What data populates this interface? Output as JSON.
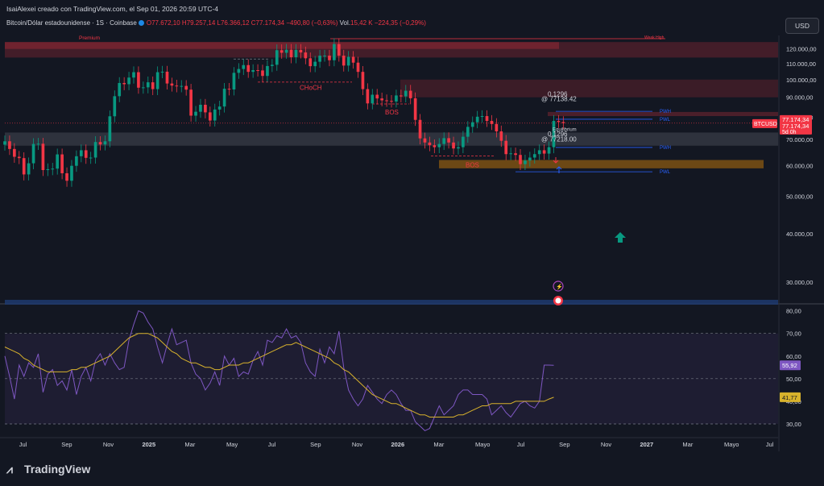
{
  "header": {
    "title": "IsaiAlexei creado con TradingView.com, el Sep 01, 2026 20:59 UTC-4",
    "symbol": "Bitcoin/Dólar estadounidense · 1S · Coinbase",
    "ohlc": "O77.672,10  H79.257,14  L76.366,12  C77.174,34",
    "change": "−490,80 (−0,63%)",
    "volume_label": "Vol.",
    "volume_value": "15,42 K",
    "volume_change": "−224,35 (−0,29%)",
    "currency_button": "USD"
  },
  "footer": {
    "brand": "TradingView"
  },
  "colors": {
    "up": "#089981",
    "down": "#f23645",
    "rsi": "#7e57c2",
    "rsi_ma": "#d8b22c",
    "background": "#131722"
  },
  "chart_data": [
    {
      "type": "candlestick",
      "title": "Bitcoin/Dólar estadounidense",
      "timeframe": "1S",
      "exchange": "Coinbase",
      "price_axis": {
        "ticks": [
          30000,
          40000,
          50000,
          60000,
          70000,
          80000,
          90000,
          100000,
          110000,
          120000
        ],
        "tick_labels": [
          "30.000,00",
          "40.000,00",
          "50.000,00",
          "60.000,00",
          "70.000,00",
          "80.000,00",
          "90.000,00",
          "100.000,00",
          "110.000,00",
          "120.000,00"
        ],
        "log_scale": true,
        "ylim": [
          27000,
          130000
        ]
      },
      "time_axis": {
        "tick_labels": [
          "Jul",
          "Sep",
          "Nov",
          "2025",
          "Mar",
          "May",
          "Jul",
          "Sep",
          "Nov",
          "2026",
          "Mar",
          "Mayo",
          "Jul",
          "Sep",
          "Nov",
          "2027",
          "Mar",
          "Mayo",
          "Jul"
        ],
        "xlim": [
          "2024-06-03",
          "2027-07-12"
        ]
      },
      "current_price": {
        "value": "77.174,34",
        "symbol": "BTCUSD",
        "countdown": "5d 0h"
      },
      "weekly_closes": [
        [
          "2024-06-03",
          69300
        ],
        [
          "2024-06-10",
          66200
        ],
        [
          "2024-06-17",
          63200
        ],
        [
          "2024-06-24",
          62700
        ],
        [
          "2024-07-01",
          56900
        ],
        [
          "2024-07-08",
          60800
        ],
        [
          "2024-07-15",
          68200
        ],
        [
          "2024-07-22",
          68300
        ],
        [
          "2024-07-29",
          58400
        ],
        [
          "2024-08-05",
          58700
        ],
        [
          "2024-08-12",
          58900
        ],
        [
          "2024-08-19",
          64100
        ],
        [
          "2024-08-26",
          57300
        ],
        [
          "2024-09-02",
          54800
        ],
        [
          "2024-09-09",
          59900
        ],
        [
          "2024-09-16",
          63400
        ],
        [
          "2024-09-23",
          65700
        ],
        [
          "2024-09-30",
          62800
        ],
        [
          "2024-10-07",
          62900
        ],
        [
          "2024-10-14",
          69000
        ],
        [
          "2024-10-21",
          68000
        ],
        [
          "2024-10-28",
          69300
        ],
        [
          "2024-11-04",
          80400
        ],
        [
          "2024-11-11",
          90600
        ],
        [
          "2024-11-18",
          98000
        ],
        [
          "2024-11-25",
          97300
        ],
        [
          "2024-12-02",
          101200
        ],
        [
          "2024-12-09",
          104500
        ],
        [
          "2024-12-16",
          95300
        ],
        [
          "2024-12-23",
          95500
        ],
        [
          "2024-12-30",
          98400
        ],
        [
          "2025-01-06",
          94500
        ],
        [
          "2025-01-13",
          104500
        ],
        [
          "2025-01-20",
          104800
        ],
        [
          "2025-01-27",
          97700
        ],
        [
          "2025-02-03",
          96500
        ],
        [
          "2025-02-10",
          96100
        ],
        [
          "2025-02-17",
          96300
        ],
        [
          "2025-02-24",
          94200
        ],
        [
          "2025-03-03",
          80700
        ],
        [
          "2025-03-10",
          82600
        ],
        [
          "2025-03-17",
          86100
        ],
        [
          "2025-03-24",
          82300
        ],
        [
          "2025-03-31",
          78400
        ],
        [
          "2025-04-07",
          83700
        ],
        [
          "2025-04-14",
          85200
        ],
        [
          "2025-04-21",
          94700
        ],
        [
          "2025-04-28",
          94300
        ],
        [
          "2025-05-05",
          104100
        ],
        [
          "2025-05-12",
          106500
        ],
        [
          "2025-05-19",
          109000
        ],
        [
          "2025-05-26",
          104700
        ],
        [
          "2025-06-02",
          105800
        ],
        [
          "2025-06-09",
          105600
        ],
        [
          "2025-06-16",
          102200
        ],
        [
          "2025-06-23",
          108400
        ],
        [
          "2025-06-30",
          109200
        ],
        [
          "2025-07-07",
          119100
        ],
        [
          "2025-07-14",
          117300
        ],
        [
          "2025-07-21",
          119400
        ],
        [
          "2025-07-28",
          114200
        ],
        [
          "2025-08-04",
          119300
        ],
        [
          "2025-08-11",
          117500
        ],
        [
          "2025-08-18",
          113500
        ],
        [
          "2025-08-25",
          108300
        ],
        [
          "2025-09-01",
          111200
        ],
        [
          "2025-09-08",
          115300
        ],
        [
          "2025-09-15",
          115300
        ],
        [
          "2025-09-22",
          112200
        ],
        [
          "2025-09-29",
          123500
        ],
        [
          "2025-10-06",
          115300
        ],
        [
          "2025-10-13",
          108700
        ],
        [
          "2025-10-20",
          114500
        ],
        [
          "2025-10-27",
          110600
        ],
        [
          "2025-11-03",
          104700
        ],
        [
          "2025-11-10",
          94500
        ],
        [
          "2025-11-17",
          86800
        ],
        [
          "2025-11-24",
          91400
        ],
        [
          "2025-12-01",
          89400
        ],
        [
          "2025-12-08",
          88400
        ],
        [
          "2025-12-15",
          88100
        ],
        [
          "2025-12-22",
          87800
        ],
        [
          "2025-12-29",
          91000
        ],
        [
          "2026-01-05",
          90500
        ],
        [
          "2026-01-12",
          93600
        ],
        [
          "2026-01-19",
          89500
        ],
        [
          "2026-01-26",
          78700
        ],
        [
          "2026-02-02",
          70500
        ],
        [
          "2026-02-09",
          68800
        ],
        [
          "2026-02-16",
          67700
        ],
        [
          "2026-02-23",
          66900
        ],
        [
          "2026-03-02",
          68200
        ],
        [
          "2026-03-09",
          70600
        ],
        [
          "2026-03-16",
          68800
        ],
        [
          "2026-03-23",
          66400
        ],
        [
          "2026-03-30",
          66900
        ],
        [
          "2026-04-06",
          71200
        ],
        [
          "2026-04-13",
          75500
        ],
        [
          "2026-04-20",
          77600
        ],
        [
          "2026-04-27",
          80200
        ],
        [
          "2026-05-04",
          80500
        ],
        [
          "2026-05-11",
          78200
        ],
        [
          "2026-05-18",
          76800
        ],
        [
          "2026-05-25",
          73500
        ],
        [
          "2026-06-01",
          69500
        ],
        [
          "2026-06-08",
          64200
        ],
        [
          "2026-06-15",
          64500
        ],
        [
          "2026-06-22",
          63900
        ],
        [
          "2026-06-29",
          60500
        ],
        [
          "2026-07-06",
          61800
        ],
        [
          "2026-07-13",
          62900
        ],
        [
          "2026-07-20",
          64200
        ],
        [
          "2026-07-27",
          65700
        ],
        [
          "2026-08-03",
          64400
        ],
        [
          "2026-08-10",
          66900
        ],
        [
          "2026-08-17",
          78200
        ],
        [
          "2026-08-24",
          77700
        ],
        [
          "2026-08-31",
          77174
        ]
      ],
      "annotations": [
        {
          "text": "Premium",
          "kind": "zone_label"
        },
        {
          "text": "Weak High",
          "kind": "level_label"
        },
        {
          "text": "CHoCH",
          "kind": "structure"
        },
        {
          "text": "BOS",
          "kind": "structure"
        },
        {
          "text": "BOS",
          "kind": "structure"
        },
        {
          "text": "0.1296",
          "kind": "fib"
        },
        {
          "text": "@ 77138.42",
          "kind": "fib"
        },
        {
          "text": "0.1296",
          "kind": "fib"
        },
        {
          "text": "@ 77218.00",
          "kind": "fib"
        },
        {
          "text": "Equilibrium",
          "kind": "zone_label"
        },
        {
          "text": "PWH",
          "kind": "level_label"
        },
        {
          "text": "PWL",
          "kind": "level_label"
        },
        {
          "text": "PWH",
          "kind": "level_label"
        },
        {
          "text": "PWL",
          "kind": "level_label"
        }
      ],
      "zones": [
        {
          "kind": "premium",
          "from": 114000,
          "to": 125000
        },
        {
          "kind": "supply",
          "from": 90000,
          "to": 100000
        },
        {
          "kind": "equilibrium",
          "from": 67500,
          "to": 73000
        },
        {
          "kind": "discount",
          "from": 59000,
          "to": 62000
        }
      ]
    },
    {
      "type": "line",
      "title": "",
      "ylim": [
        25,
        82
      ],
      "ticks": [
        30,
        40,
        50,
        60,
        70,
        80
      ],
      "tick_labels": [
        "30,00",
        "40,00",
        "50,00",
        "60,00",
        "70,00",
        "80,00"
      ],
      "levels": [
        30,
        50,
        70
      ],
      "series": [
        {
          "name": "",
          "value_label": "55,92",
          "values": [
            60,
            51,
            41,
            56,
            51,
            57,
            55,
            61,
            44,
            52,
            54,
            47,
            49,
            45,
            54,
            43,
            51,
            55,
            49,
            58,
            61,
            56,
            61,
            57,
            54,
            55,
            67,
            74,
            80,
            79,
            75,
            72,
            64,
            57,
            65,
            72,
            65,
            66,
            67,
            57,
            52,
            50,
            45,
            48,
            53,
            47,
            60,
            56,
            59,
            51,
            53,
            52,
            58,
            62,
            56,
            67,
            66,
            69,
            68,
            72,
            68,
            69,
            66,
            57,
            53,
            51,
            63,
            57,
            64,
            61,
            71,
            55,
            45,
            41,
            38,
            41,
            47,
            44,
            41,
            39,
            43,
            45,
            43,
            39,
            36,
            36,
            31,
            29,
            27,
            28,
            33,
            38,
            34,
            36,
            38,
            43,
            45,
            45,
            43,
            43,
            43,
            41,
            34,
            36,
            38,
            35,
            33,
            36,
            39,
            40,
            38,
            37,
            40,
            56,
            56,
            55.92
          ]
        },
        {
          "name": "",
          "value_label": "41,77",
          "values": [
            64,
            63,
            62,
            61,
            59,
            58,
            56,
            55,
            54,
            53,
            53,
            53,
            53,
            53,
            54,
            54,
            55,
            55,
            56,
            57,
            58,
            59,
            60,
            62,
            64,
            66,
            68,
            69,
            70,
            70,
            70,
            69,
            68,
            66,
            64,
            62,
            61,
            59,
            58,
            57,
            57,
            56,
            55,
            55,
            54,
            54,
            55,
            56,
            56,
            56,
            57,
            57,
            58,
            59,
            60,
            61,
            62,
            63,
            64,
            65,
            65,
            66,
            65,
            64,
            63,
            62,
            61,
            60,
            59,
            57,
            56,
            54,
            53,
            51,
            49,
            47,
            45,
            43,
            42,
            41,
            40,
            39,
            39,
            38,
            37,
            36,
            35,
            34,
            34,
            33,
            33,
            33,
            33,
            33,
            33,
            34,
            34,
            35,
            36,
            37,
            38,
            38,
            39,
            39,
            39,
            39,
            39,
            40,
            40,
            40,
            40,
            40,
            40,
            40,
            41,
            41.77
          ]
        }
      ]
    }
  ]
}
